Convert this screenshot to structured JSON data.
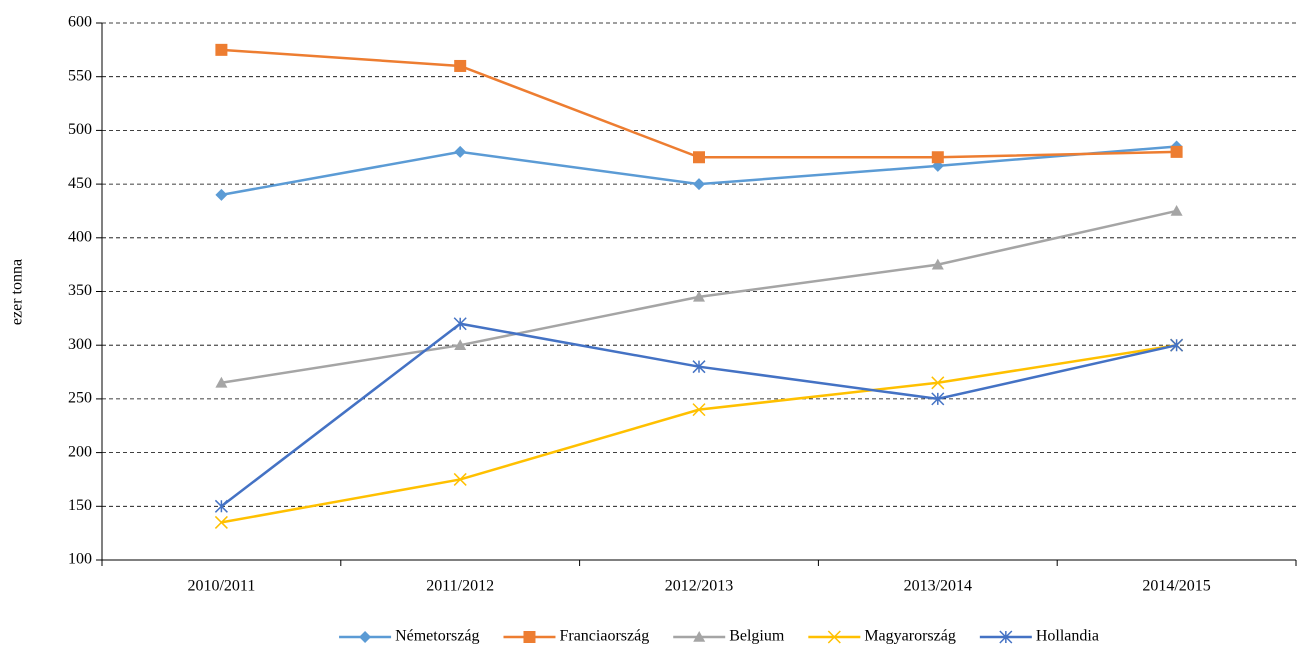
{
  "chart_data": {
    "type": "line",
    "y_label": "ezer tonna",
    "categories": [
      "2010/2011",
      "2011/2012",
      "2012/2013",
      "2013/2014",
      "2014/2015"
    ],
    "series": [
      {
        "name": "Németország",
        "color": "#5b9bd5",
        "marker": "diamond",
        "values": [
          440,
          480,
          450,
          467,
          485
        ]
      },
      {
        "name": "Franciaország",
        "color": "#ed7d31",
        "marker": "square",
        "values": [
          575,
          560,
          475,
          475,
          480
        ]
      },
      {
        "name": "Belgium",
        "color": "#a5a5a5",
        "marker": "triangle",
        "values": [
          265,
          300,
          345,
          375,
          425
        ]
      },
      {
        "name": "Magyarország",
        "color": "#ffc000",
        "marker": "x",
        "values": [
          135,
          175,
          240,
          265,
          300
        ]
      },
      {
        "name": "Hollandia",
        "color": "#4472c4",
        "marker": "asterisk",
        "values": [
          150,
          320,
          280,
          250,
          300
        ]
      }
    ],
    "ylim": [
      100,
      600
    ],
    "yticks": [
      100,
      150,
      200,
      250,
      300,
      350,
      400,
      450,
      500,
      550,
      600
    ],
    "grid": true,
    "legend": "bottom"
  }
}
